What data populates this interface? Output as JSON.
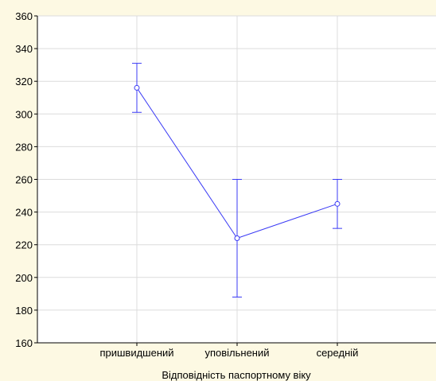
{
  "chart_data": {
    "type": "line",
    "title": "",
    "xlabel": "Відповідність паспортному віку",
    "ylabel": "",
    "categories": [
      "пришвидшений",
      "уповільнений",
      "середній"
    ],
    "series": [
      {
        "values": [
          316,
          224,
          245
        ],
        "error_low": [
          301,
          188,
          230
        ],
        "error_high": [
          331,
          260,
          260
        ]
      }
    ],
    "ylim": [
      160,
      360
    ],
    "yticks": [
      160,
      180,
      200,
      220,
      240,
      260,
      280,
      300,
      320,
      340,
      360
    ],
    "grid": true,
    "legend": "none",
    "colors": {
      "series": "#3b3bf5",
      "grid": "#dcdcdc",
      "plot_bg": "#ffffff",
      "page_bg": "#fdf9e3",
      "axis": "#000000"
    }
  }
}
